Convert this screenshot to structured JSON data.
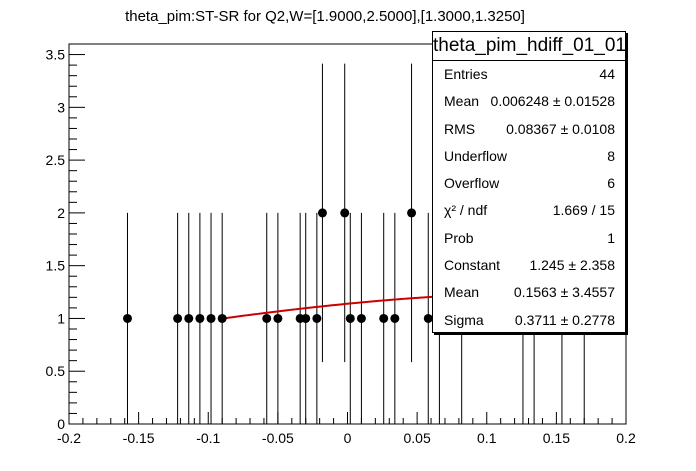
{
  "chart_data": {
    "type": "scatter",
    "title": "theta_pim:ST-SR for Q2,W=[1.9000,2.5000],[1.3000,1.3250]",
    "xlim": [
      -0.2,
      0.2
    ],
    "ylim": [
      0,
      3.6
    ],
    "x_ticks": [
      "-0.2",
      "-0.15",
      "-0.1",
      "-0.05",
      "0",
      "0.05",
      "0.1",
      "0.15",
      "0.2"
    ],
    "y_ticks": [
      "0",
      "0.5",
      "1",
      "1.5",
      "2",
      "2.5",
      "3",
      "3.5"
    ],
    "series": [
      {
        "kind": "points_with_errors",
        "color": "#000000",
        "points": [
          {
            "x": -0.158,
            "y": 1,
            "yerr": 1
          },
          {
            "x": -0.122,
            "y": 1,
            "yerr": 1
          },
          {
            "x": -0.114,
            "y": 1,
            "yerr": 1
          },
          {
            "x": -0.106,
            "y": 1,
            "yerr": 1
          },
          {
            "x": -0.098,
            "y": 1,
            "yerr": 1
          },
          {
            "x": -0.09,
            "y": 1,
            "yerr": 1
          },
          {
            "x": -0.058,
            "y": 1,
            "yerr": 1
          },
          {
            "x": -0.05,
            "y": 1,
            "yerr": 1
          },
          {
            "x": -0.034,
            "y": 1,
            "yerr": 1
          },
          {
            "x": -0.03,
            "y": 1,
            "yerr": 1
          },
          {
            "x": -0.022,
            "y": 1,
            "yerr": 1
          },
          {
            "x": -0.018,
            "y": 2,
            "yerr": 1.414
          },
          {
            "x": -0.002,
            "y": 2,
            "yerr": 1.414
          },
          {
            "x": 0.002,
            "y": 1,
            "yerr": 1
          },
          {
            "x": 0.01,
            "y": 1,
            "yerr": 1
          },
          {
            "x": 0.026,
            "y": 1,
            "yerr": 1
          },
          {
            "x": 0.034,
            "y": 1,
            "yerr": 1
          },
          {
            "x": 0.046,
            "y": 2,
            "yerr": 1.414
          },
          {
            "x": 0.058,
            "y": 1,
            "yerr": 1
          }
        ],
        "occluded_error_bar_x": [
          0.066,
          0.082,
          0.126,
          0.134,
          0.154,
          0.17
        ]
      },
      {
        "kind": "fit_curve",
        "function": "gaus",
        "constant": 1.245,
        "mean": 0.1563,
        "sigma": 0.3711,
        "x_range": [
          -0.09,
          0.066
        ],
        "color": "#cc0000"
      }
    ]
  },
  "stats_box": {
    "title": "theta_pim_hdiff_01_01",
    "rows": [
      {
        "label": "Entries",
        "value": "44"
      },
      {
        "label": "Mean",
        "value": "0.006248 ± 0.01528"
      },
      {
        "label": "RMS",
        "value": "0.08367 ± 0.0108"
      },
      {
        "label": "Underflow",
        "value": "8"
      },
      {
        "label": "Overflow",
        "value": "6"
      },
      {
        "label": "χ² / ndf",
        "value": "1.669 / 15"
      },
      {
        "label": "Prob",
        "value": "1"
      },
      {
        "label": "Constant",
        "value": "1.245 ± 2.358"
      },
      {
        "label": "Mean",
        "value": "0.1563 ± 3.4557"
      },
      {
        "label": "Sigma",
        "value": "0.3711 ± 0.2778"
      }
    ]
  }
}
